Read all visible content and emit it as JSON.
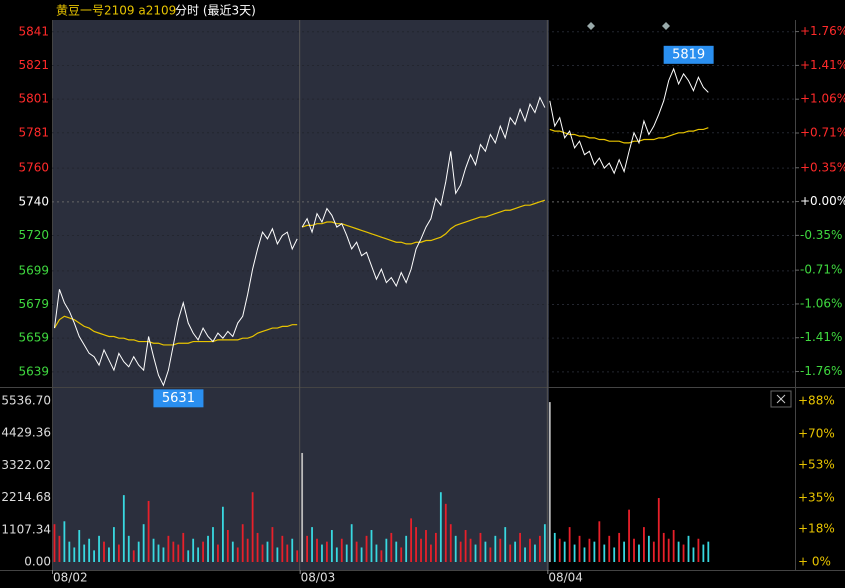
{
  "chart_data": {
    "type": "intraday",
    "title": "黄豆一号2109 a2109",
    "subtitle": "分时 (最近3天)",
    "max_label": 5819,
    "min_label": 5631,
    "ylim": [
      5630,
      5848
    ],
    "yticks": [
      5841,
      5821,
      5801,
      5781,
      5760,
      5740,
      5720,
      5699,
      5679,
      5659,
      5639
    ],
    "y2lim": [
      -1.92,
      1.88
    ],
    "y2ticks": [
      {
        "value": 1.76,
        "label": "+1.76%"
      },
      {
        "value": 1.41,
        "label": "+1.41%"
      },
      {
        "value": 1.06,
        "label": "+1.06%"
      },
      {
        "value": 0.71,
        "label": "+0.71%"
      },
      {
        "value": 0.35,
        "label": "+0.35%"
      },
      {
        "value": 0,
        "label": "+0.00%"
      },
      {
        "value": -0.35,
        "label": "-0.35%"
      },
      {
        "value": -0.71,
        "label": "-0.71%"
      },
      {
        "value": -1.06,
        "label": "-1.06%"
      },
      {
        "value": -1.41,
        "label": "-1.41%"
      },
      {
        "value": -1.76,
        "label": "-1.76%"
      }
    ],
    "price_color": "#ffffff",
    "avg_color": "#e8c400",
    "up_color": "#e8202a",
    "down_color": "#38d8e0",
    "up_tick_color": "#ff2a2a",
    "down_tick_color": "#3fd83f",
    "flat_tick_color": "#ffffff",
    "volume": {
      "ylim": [
        -275,
        5984
      ],
      "yticks": [
        {
          "value": 5536.7,
          "label": "5536.70"
        },
        {
          "value": 4429.36,
          "label": "4429.36"
        },
        {
          "value": 3322.02,
          "label": "3322.02"
        },
        {
          "value": 2214.68,
          "label": "2214.68"
        },
        {
          "value": 1107.34,
          "label": "1107.34"
        },
        {
          "value": 0,
          "label": "0.00"
        }
      ],
      "y2lim": [
        -4.4,
        95.1
      ],
      "y2ticks": [
        {
          "value": 88,
          "label": "+88%"
        },
        {
          "value": 70,
          "label": "+70%"
        },
        {
          "value": 53,
          "label": "+53%"
        },
        {
          "value": 35,
          "label": "+35%"
        },
        {
          "value": 18,
          "label": "+18%"
        },
        {
          "value": 0,
          "label": "+ 0%"
        }
      ]
    },
    "days": [
      {
        "date": "08/02",
        "price": [
          5665,
          5688,
          5680,
          5675,
          5668,
          5660,
          5655,
          5650,
          5648,
          5643,
          5652,
          5646,
          5640,
          5650,
          5645,
          5642,
          5648,
          5643,
          5640,
          5660,
          5648,
          5637,
          5631,
          5640,
          5655,
          5670,
          5680,
          5668,
          5662,
          5658,
          5665,
          5660,
          5657,
          5662,
          5659,
          5663,
          5660,
          5668,
          5672,
          5685,
          5700,
          5712,
          5722,
          5718,
          5724,
          5715,
          5720,
          5722,
          5712,
          5718
        ],
        "avg": [
          5665,
          5670,
          5672,
          5671,
          5670,
          5668,
          5666,
          5665,
          5663,
          5662,
          5661,
          5660,
          5660,
          5659,
          5659,
          5658,
          5658,
          5657,
          5657,
          5657,
          5656,
          5656,
          5655,
          5655,
          5655,
          5656,
          5656,
          5656,
          5657,
          5657,
          5657,
          5657,
          5657,
          5658,
          5658,
          5658,
          5658,
          5658,
          5659,
          5659,
          5660,
          5662,
          5663,
          5664,
          5665,
          5665,
          5666,
          5666,
          5667,
          5667
        ],
        "volume": [
          1300,
          900,
          1400,
          700,
          500,
          1100,
          600,
          800,
          400,
          900,
          700,
          500,
          1200,
          600,
          2300,
          900,
          400,
          700,
          1300,
          2100,
          800,
          600,
          500,
          900,
          700,
          600,
          1000,
          400,
          800,
          500,
          700,
          900,
          1200,
          600,
          1900,
          1100,
          700,
          500,
          1300,
          800,
          2400,
          1000,
          600,
          700,
          1200,
          500,
          900,
          600,
          800,
          400
        ]
      },
      {
        "date": "08/03",
        "price": [
          5725,
          5730,
          5722,
          5733,
          5728,
          5736,
          5732,
          5725,
          5727,
          5720,
          5712,
          5716,
          5708,
          5710,
          5702,
          5694,
          5700,
          5692,
          5695,
          5690,
          5698,
          5692,
          5700,
          5712,
          5718,
          5725,
          5730,
          5742,
          5738,
          5752,
          5770,
          5745,
          5750,
          5760,
          5768,
          5762,
          5774,
          5770,
          5780,
          5775,
          5785,
          5778,
          5790,
          5786,
          5795,
          5788,
          5798,
          5793,
          5802,
          5796
        ],
        "avg": [
          5725,
          5726,
          5726,
          5727,
          5727,
          5728,
          5728,
          5727,
          5727,
          5726,
          5725,
          5724,
          5723,
          5722,
          5721,
          5720,
          5719,
          5718,
          5717,
          5716,
          5716,
          5715,
          5715,
          5716,
          5716,
          5717,
          5717,
          5718,
          5719,
          5721,
          5724,
          5726,
          5727,
          5728,
          5729,
          5730,
          5731,
          5731,
          5732,
          5733,
          5734,
          5735,
          5735,
          5736,
          5737,
          5738,
          5738,
          5739,
          5740,
          5741
        ],
        "volume": [
          3750,
          900,
          1200,
          800,
          600,
          700,
          1100,
          500,
          800,
          600,
          1300,
          700,
          500,
          900,
          1100,
          600,
          400,
          800,
          1000,
          700,
          500,
          900,
          1500,
          1200,
          800,
          1100,
          600,
          1000,
          2400,
          2000,
          1300,
          900,
          700,
          1100,
          800,
          600,
          1000,
          700,
          500,
          900,
          800,
          1200,
          600,
          700,
          1000,
          500,
          800,
          600,
          900,
          1300
        ]
      },
      {
        "date": "08/04",
        "price": [
          5800,
          5785,
          5790,
          5778,
          5782,
          5772,
          5776,
          5768,
          5770,
          5762,
          5766,
          5760,
          5763,
          5757,
          5765,
          5758,
          5770,
          5781,
          5775,
          5788,
          5780,
          5785,
          5792,
          5800,
          5812,
          5819,
          5810,
          5816,
          5812,
          5806,
          5814,
          5808,
          5805
        ],
        "avg": [
          5783,
          5782,
          5782,
          5781,
          5780,
          5780,
          5779,
          5779,
          5778,
          5778,
          5777,
          5777,
          5776,
          5776,
          5776,
          5775,
          5775,
          5776,
          5776,
          5777,
          5777,
          5777,
          5778,
          5778,
          5779,
          5780,
          5781,
          5781,
          5782,
          5782,
          5783,
          5783,
          5784
        ],
        "volume": [
          5500,
          1000,
          800,
          700,
          1200,
          600,
          900,
          500,
          800,
          700,
          1400,
          600,
          900,
          500,
          1000,
          700,
          1800,
          800,
          600,
          1200,
          900,
          700,
          2200,
          1000,
          800,
          1100,
          700,
          600,
          900,
          500,
          800,
          600,
          700
        ]
      }
    ]
  }
}
